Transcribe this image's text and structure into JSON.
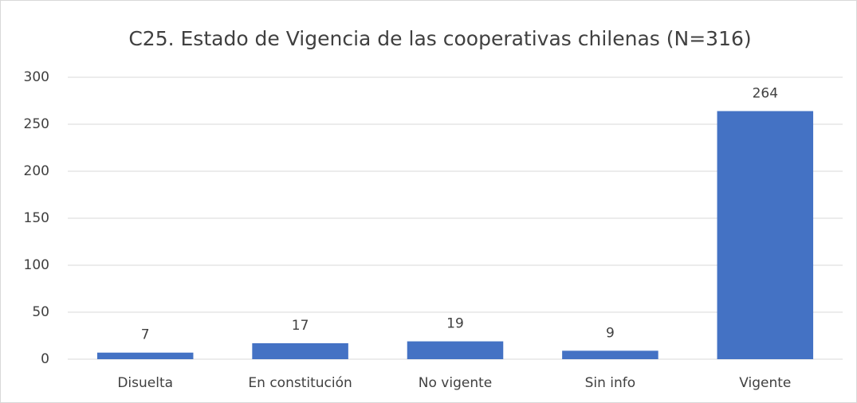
{
  "chart_data": {
    "type": "bar",
    "title": "C25. Estado de Vigencia de las cooperativas chilenas (N=316)",
    "categories": [
      "Disuelta",
      "En constitución",
      "No vigente",
      "Sin info",
      "Vigente"
    ],
    "values": [
      7,
      17,
      19,
      9,
      264
    ],
    "color": "#4472c4",
    "ylim": [
      0,
      300
    ],
    "yticks": [
      0,
      50,
      100,
      150,
      200,
      250,
      300
    ],
    "grid": true
  }
}
